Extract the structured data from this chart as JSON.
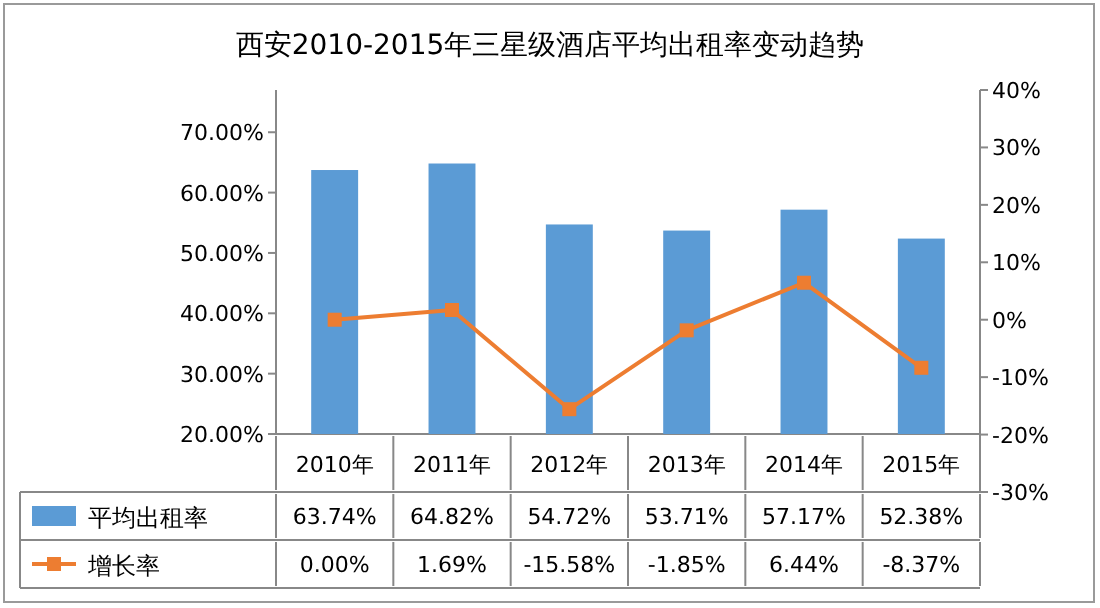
{
  "chart_data": {
    "type": "bar",
    "title": "西安2010-2015年三星级酒店平均出租率变动趋势",
    "categories": [
      "2010年",
      "2011年",
      "2012年",
      "2013年",
      "2014年",
      "2015年"
    ],
    "series": [
      {
        "name": "平均出租率",
        "color": "#5b9bd5",
        "values": [
          63.74,
          64.82,
          54.72,
          53.71,
          57.17,
          52.38
        ],
        "value_labels": [
          "63.74%",
          "64.82%",
          "54.72%",
          "53.71%",
          "57.17%",
          "52.38%"
        ]
      },
      {
        "name": "增长率",
        "type": "line",
        "axis": "y2",
        "color": "#ed7d31",
        "marker": "square",
        "values": [
          0.0,
          1.69,
          -15.58,
          -1.85,
          6.44,
          -8.37
        ],
        "value_labels": [
          "0.00%",
          "1.69%",
          "-15.58%",
          "-1.85%",
          "6.44%",
          "-8.37%"
        ]
      }
    ],
    "ylim": [
      20,
      77
    ],
    "yticks": [
      {
        "value": 20,
        "label": "20.00%"
      },
      {
        "value": 30,
        "label": "30.00%"
      },
      {
        "value": 40,
        "label": "40.00%"
      },
      {
        "value": 50,
        "label": "50.00%"
      },
      {
        "value": 60,
        "label": "60.00%"
      },
      {
        "value": 70,
        "label": "70.00%"
      }
    ],
    "y2lim": [
      -30,
      40
    ],
    "y2ticks": [
      {
        "value": -30,
        "label": "-30%"
      },
      {
        "value": -20,
        "label": "-20%"
      },
      {
        "value": -10,
        "label": "-10%"
      },
      {
        "value": 0,
        "label": "0%"
      },
      {
        "value": 10,
        "label": "10%"
      },
      {
        "value": 20,
        "label": "20%"
      },
      {
        "value": 30,
        "label": "30%"
      },
      {
        "value": 40,
        "label": "40%"
      }
    ],
    "data_labels": true,
    "legend": "bottom"
  }
}
